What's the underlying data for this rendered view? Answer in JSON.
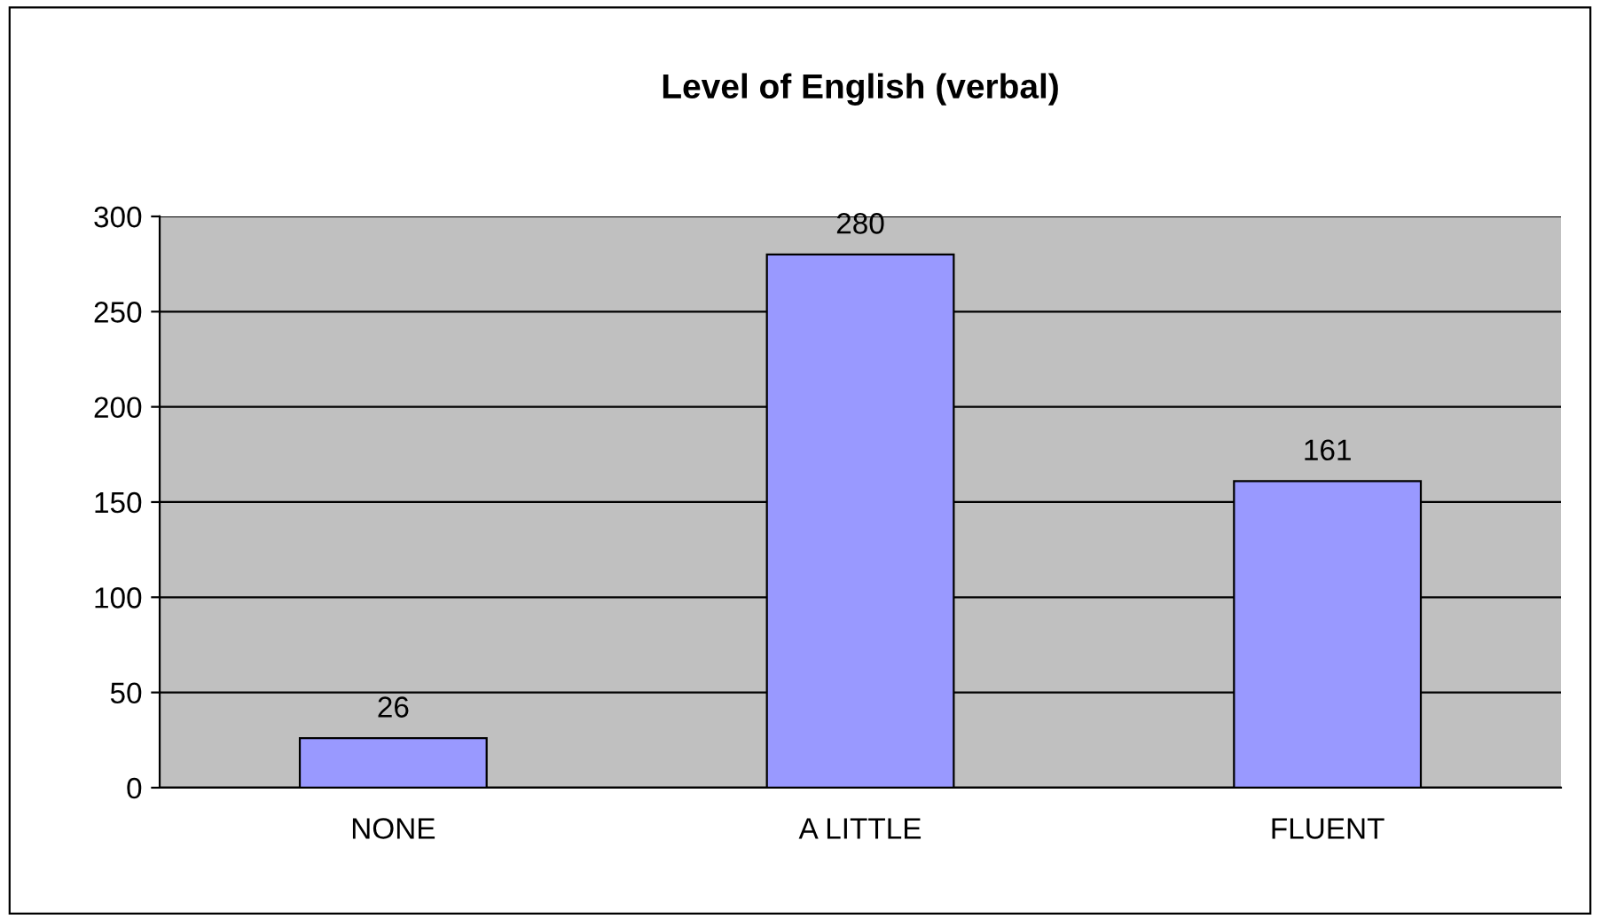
{
  "chart_data": {
    "type": "bar",
    "title": "Level of English (verbal)",
    "categories": [
      "NONE",
      "A LITTLE",
      "FLUENT"
    ],
    "values": [
      26,
      280,
      161
    ],
    "color": "#9999ff",
    "ylim": [
      0,
      300
    ],
    "yticks": [
      0,
      50,
      100,
      150,
      200,
      250,
      300
    ],
    "grid": "y",
    "data_labels": true,
    "legend": false
  }
}
